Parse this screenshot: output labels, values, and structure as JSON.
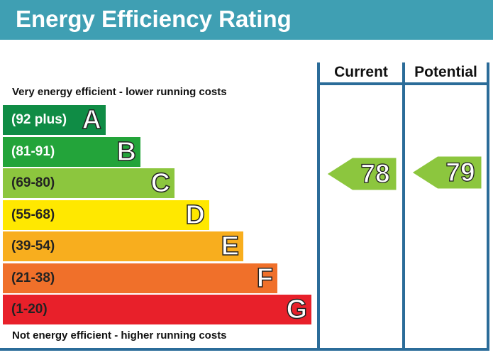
{
  "header": {
    "title": "Energy Efficiency Rating"
  },
  "captions": {
    "top": "Very energy efficient - lower running costs",
    "bottom": "Not energy efficient - higher running costs"
  },
  "columns": {
    "current": "Current",
    "potential": "Potential"
  },
  "chart_data": {
    "type": "bar",
    "title": "Energy Efficiency Rating",
    "bands": [
      {
        "letter": "A",
        "range": "(92 plus)",
        "color": "#0f8c45"
      },
      {
        "letter": "B",
        "range": "(81-91)",
        "color": "#23a43a"
      },
      {
        "letter": "C",
        "range": "(69-80)",
        "color": "#8cc63e"
      },
      {
        "letter": "D",
        "range": "(55-68)",
        "color": "#ffe800"
      },
      {
        "letter": "E",
        "range": "(39-54)",
        "color": "#f8ae1e"
      },
      {
        "letter": "F",
        "range": "(21-38)",
        "color": "#f0702a"
      },
      {
        "letter": "G",
        "range": "(1-20)",
        "color": "#e8202a"
      }
    ],
    "current": {
      "value": 78,
      "band": "C",
      "color": "#8cc63e"
    },
    "potential": {
      "value": 79,
      "band": "C",
      "color": "#8cc63e"
    }
  }
}
